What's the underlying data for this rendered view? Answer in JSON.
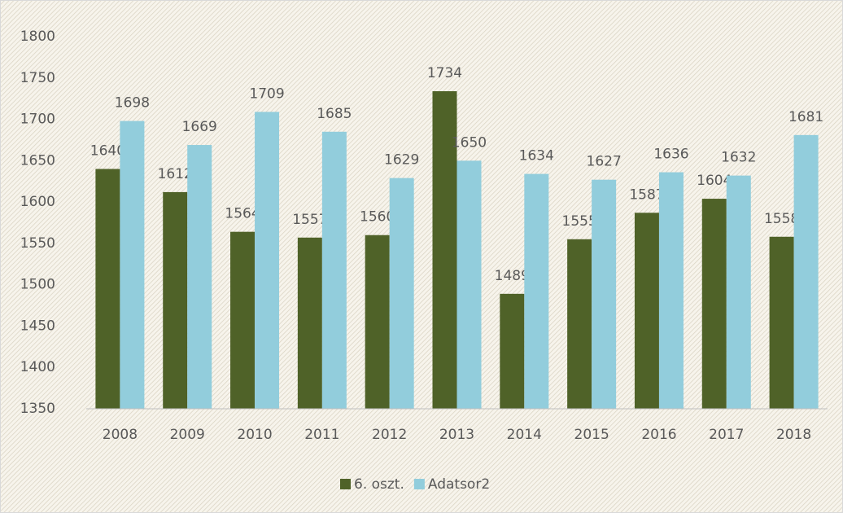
{
  "chart_data": {
    "type": "bar",
    "categories": [
      "2008",
      "2009",
      "2010",
      "2011",
      "2012",
      "2013",
      "2014",
      "2015",
      "2016",
      "2017",
      "2018"
    ],
    "series": [
      {
        "name": "6. oszt.",
        "color": "#4f6228",
        "values": [
          1640,
          1612,
          1564,
          1557,
          1560,
          1734,
          1489,
          1555,
          1587,
          1604,
          1558
        ]
      },
      {
        "name": "Adatsor2",
        "color": "#92cddc",
        "values": [
          1698,
          1669,
          1709,
          1685,
          1629,
          1650,
          1634,
          1627,
          1636,
          1632,
          1681
        ]
      }
    ],
    "ylim": [
      1350,
      1800
    ],
    "yticks": [
      1350,
      1400,
      1450,
      1500,
      1550,
      1600,
      1650,
      1700,
      1750,
      1800
    ],
    "legend": "bottom"
  }
}
